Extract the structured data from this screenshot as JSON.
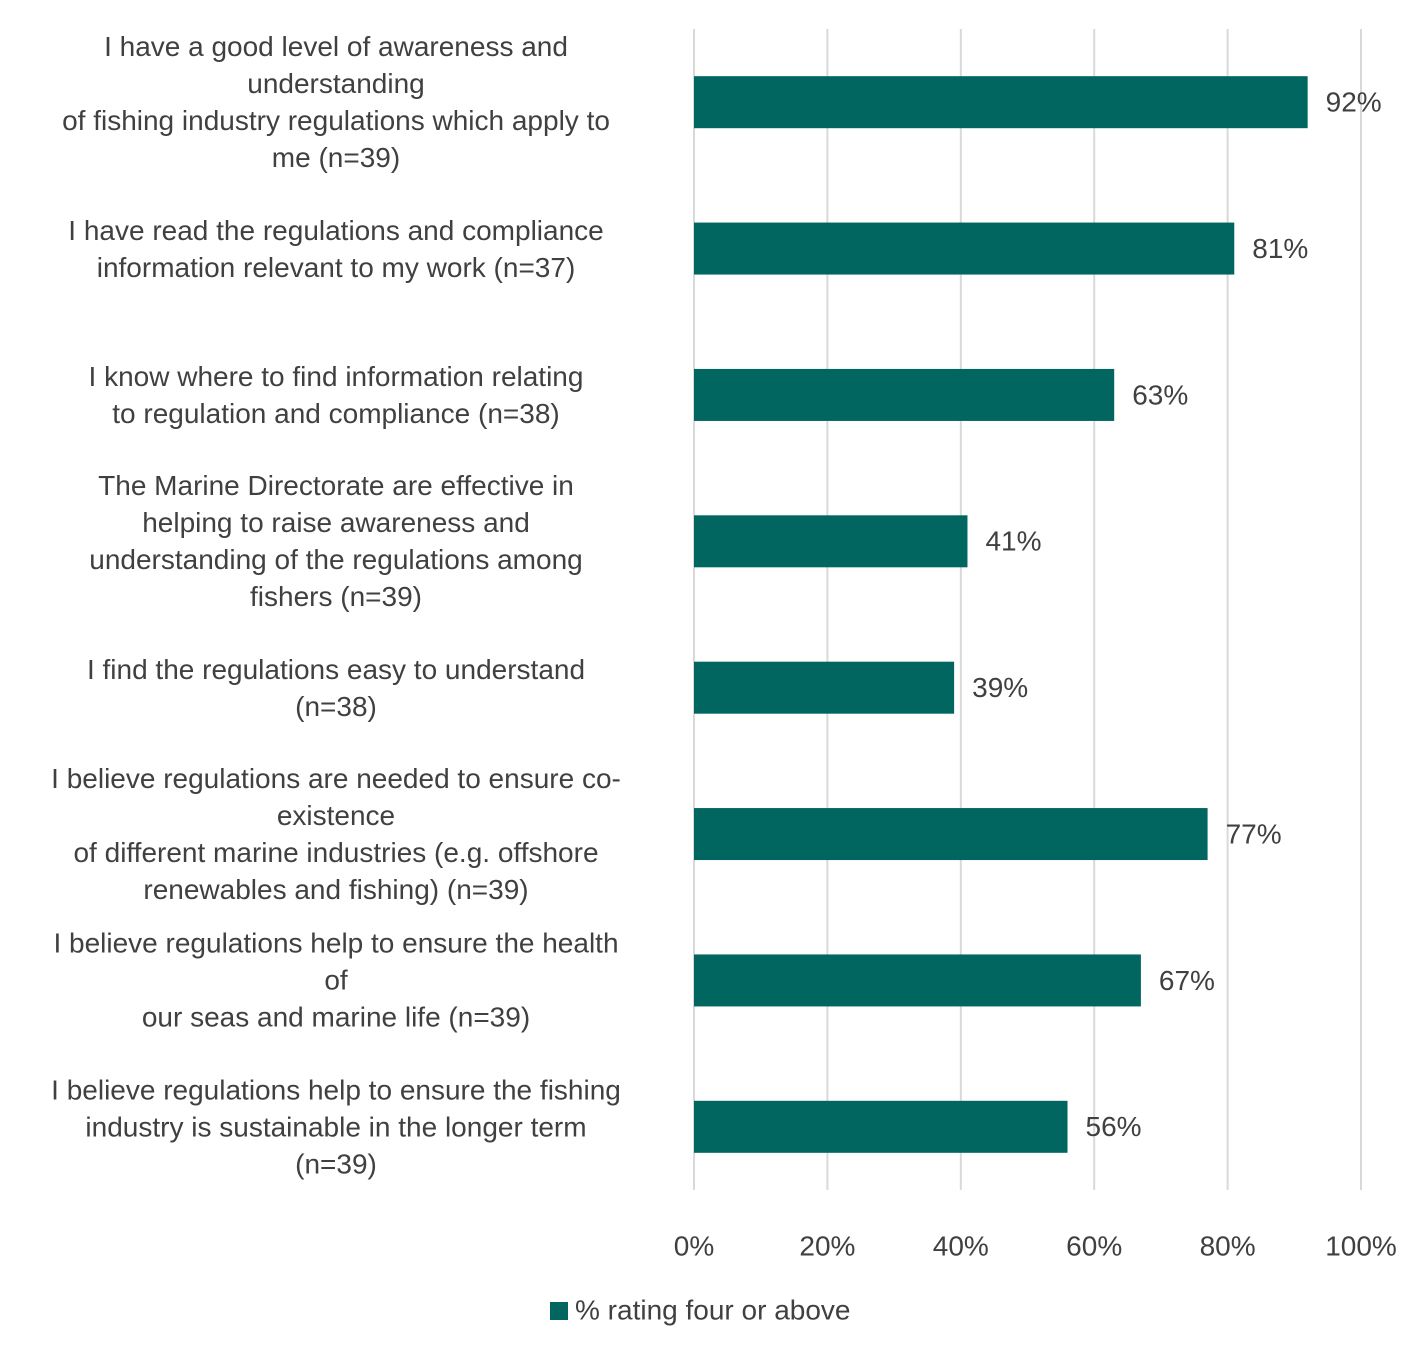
{
  "chart_data": {
    "type": "barh",
    "categories": [
      "I have a good level of awareness and\nunderstanding\nof fishing  industry regulations which apply  to\nme (n=39)",
      "I have read the regulations and compliance\ninformation relevant to my work (n=37)",
      "I know where to find information relating\nto regulation and compliance (n=38)",
      "The Marine Directorate are effective in\nhelping to raise awareness and\nunderstanding of the regulations among\nfishers (n=39)",
      "I find the regulations easy to understand\n(n=38)",
      "I believe regulations are needed to ensure co-\nexistence\nof different marine industries (e.g. offshore\nrenewables and fishing) (n=39)",
      "I believe regulations help to ensure the health\nof\nour seas and marine life (n=39)",
      "I believe regulations help to ensure the fishing\nindustry is sustainable in the longer term\n(n=39)"
    ],
    "series": [
      {
        "name": "% rating four or above",
        "color": "#00665f",
        "values": [
          92,
          81,
          63,
          41,
          39,
          77,
          67,
          56
        ],
        "value_labels": [
          "92%",
          "81%",
          "63%",
          "41%",
          "39%",
          "77%",
          "67%",
          "56%"
        ]
      }
    ],
    "xlim": [
      0,
      100
    ],
    "xticks": [
      {
        "value": 0,
        "label": "0%"
      },
      {
        "value": 20,
        "label": "20%"
      },
      {
        "value": 40,
        "label": "40%"
      },
      {
        "value": 60,
        "label": "60%"
      },
      {
        "value": 80,
        "label": "80%"
      },
      {
        "value": 100,
        "label": "100%"
      }
    ],
    "grid": true,
    "legend": "bottom"
  }
}
